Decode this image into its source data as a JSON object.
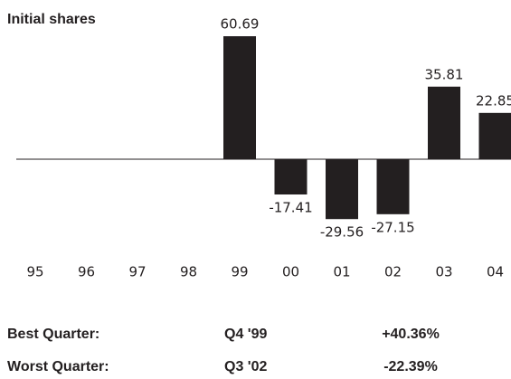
{
  "chart_data": {
    "type": "bar",
    "title": "Initial shares",
    "categories": [
      "95",
      "96",
      "97",
      "98",
      "99",
      "00",
      "01",
      "02",
      "03",
      "04"
    ],
    "values": [
      null,
      null,
      null,
      null,
      60.69,
      -17.41,
      -29.56,
      -27.15,
      35.81,
      22.85
    ],
    "color": "#231f20"
  },
  "stats": [
    [
      "Best Quarter:",
      "Q4 '99",
      "+40.36%"
    ],
    [
      "Worst Quarter:",
      "Q3 '02",
      "-22.39%"
    ]
  ]
}
